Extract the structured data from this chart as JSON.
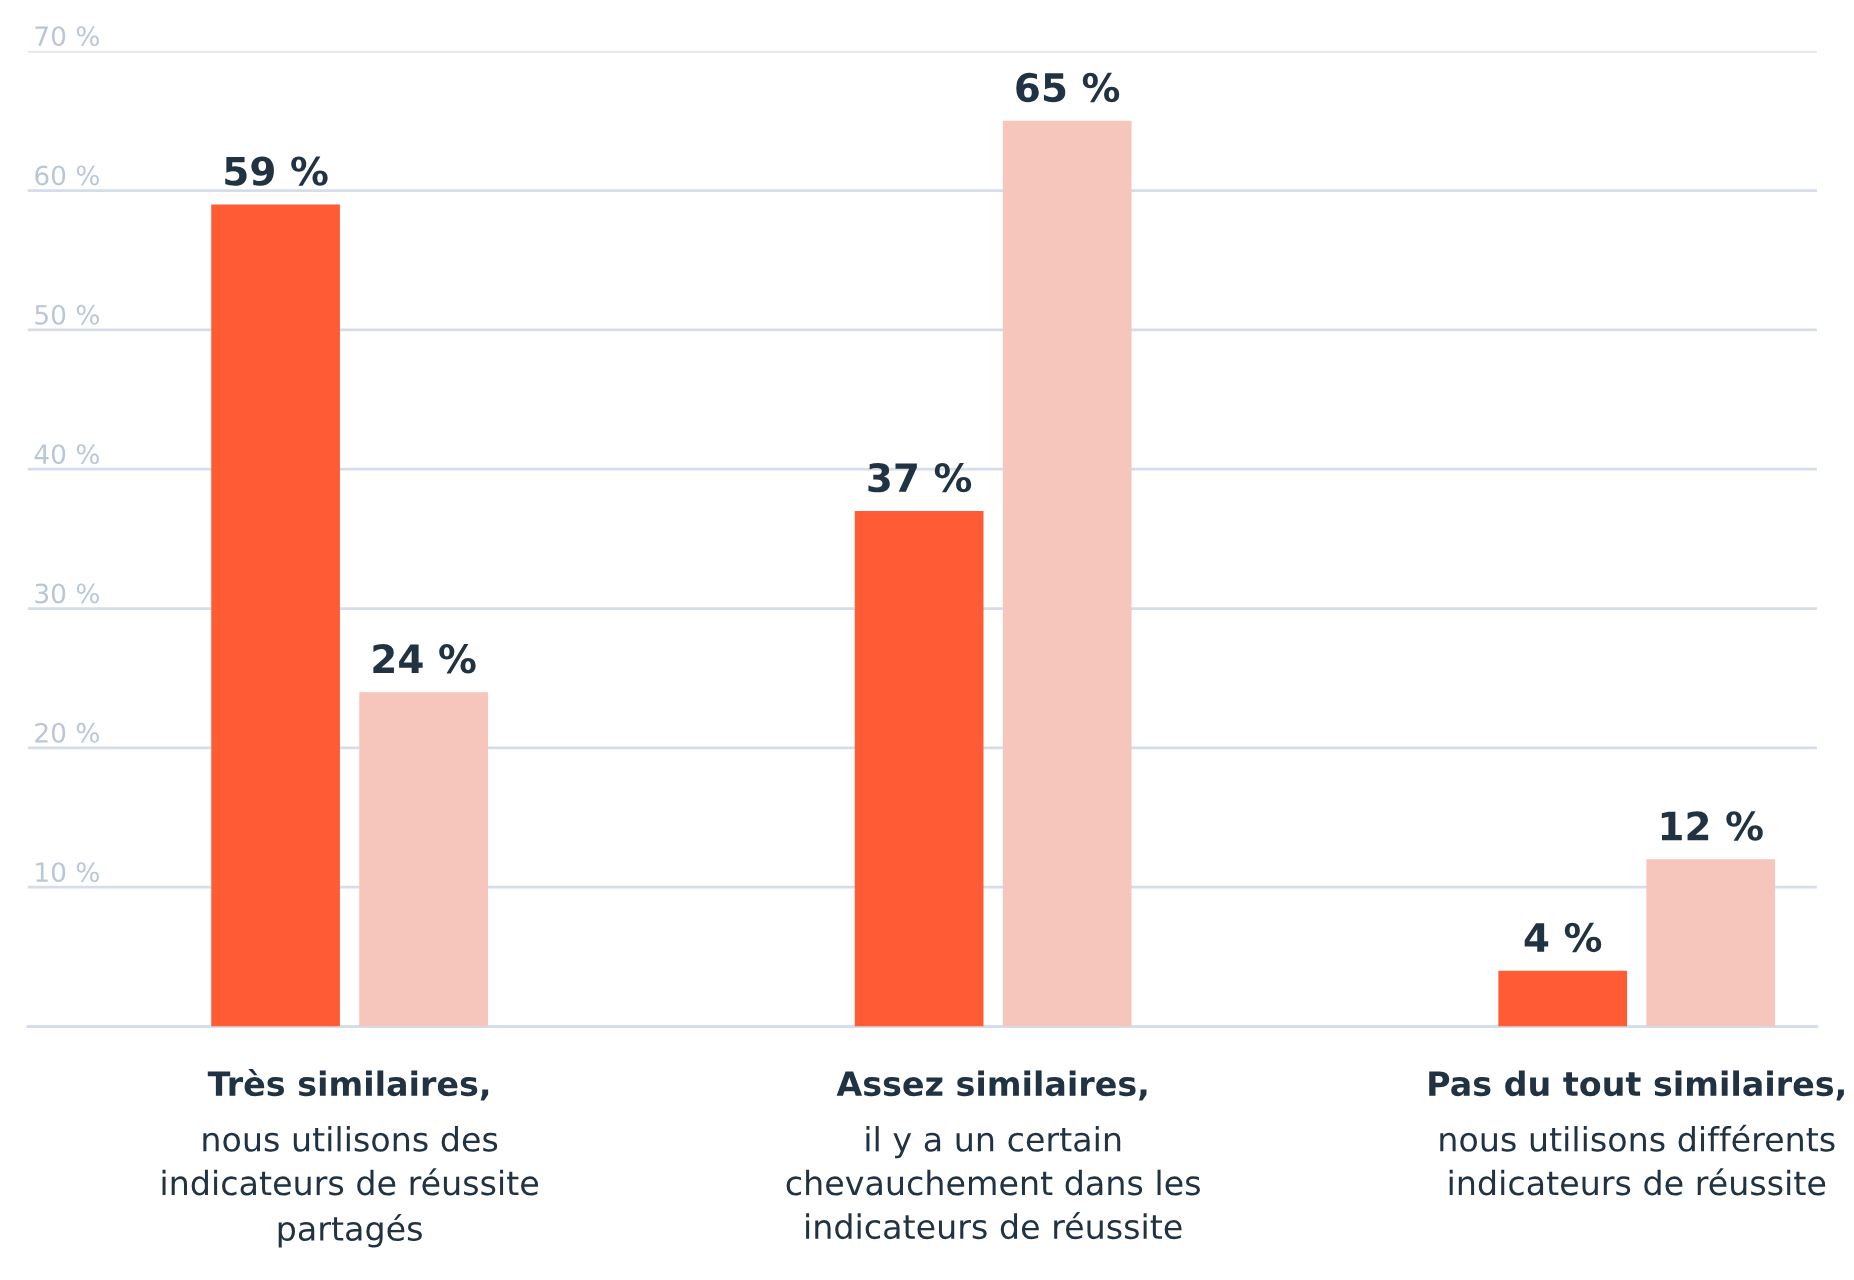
{
  "chart_data": {
    "type": "bar",
    "categories": [
      "Très similaires, nous utilisons des indicateurs de réussite partagés",
      "Assez similaires, il y a un certain chevauchement dans les indicateurs de réussite",
      "Pas du tout similaires, nous utilisons différents indicateurs de réussite"
    ],
    "series": [
      {
        "color": "#ff5c35",
        "values": [
          59,
          37,
          4
        ],
        "value_labels": [
          "59 %",
          "37 %",
          "4 %"
        ]
      },
      {
        "color": "#f6c5bb",
        "values": [
          24,
          65,
          12
        ],
        "value_labels": [
          "24 %",
          "65 %",
          "12 %"
        ]
      }
    ],
    "ylim": [
      0,
      70
    ],
    "yticks": [
      {
        "value": 0,
        "label": null
      },
      {
        "value": 10,
        "label": "10 %"
      },
      {
        "value": 20,
        "label": "20 %"
      },
      {
        "value": 30,
        "label": "30 %"
      },
      {
        "value": 40,
        "label": "40 %"
      },
      {
        "value": 50,
        "label": "50 %"
      },
      {
        "value": 60,
        "label": "60 %"
      },
      {
        "value": 70,
        "label": "70 %"
      }
    ],
    "grid": "y"
  }
}
